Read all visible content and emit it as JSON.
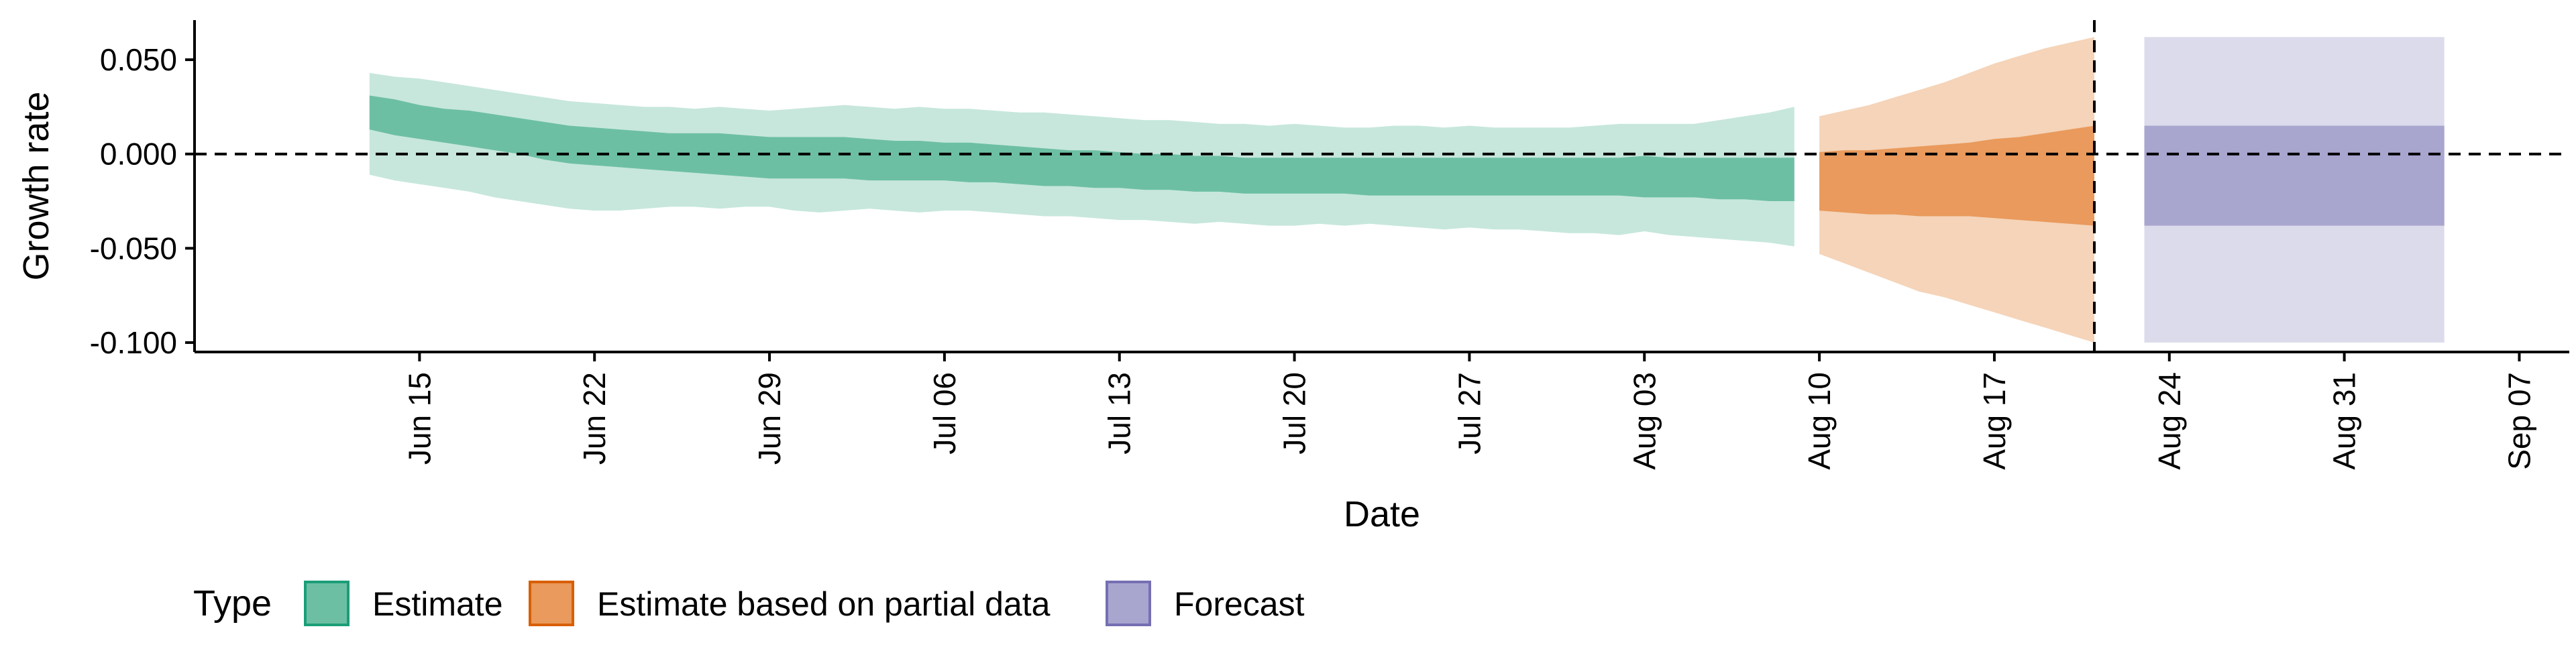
{
  "chart_data": {
    "type": "area",
    "xlabel": "Date",
    "ylabel": "Growth rate",
    "x_range": [
      "2020-06-06",
      "2020-09-09"
    ],
    "ylim": [
      -0.105,
      0.071
    ],
    "y_ticks": [
      0.05,
      0.0,
      -0.05,
      -0.1
    ],
    "y_tick_labels": [
      "0.050",
      "0.000",
      "-0.050",
      "-0.100"
    ],
    "x_ticks": [
      "2020-06-15",
      "2020-06-22",
      "2020-06-29",
      "2020-07-06",
      "2020-07-13",
      "2020-07-20",
      "2020-07-27",
      "2020-08-03",
      "2020-08-10",
      "2020-08-17",
      "2020-08-24",
      "2020-08-31",
      "2020-09-07"
    ],
    "x_tick_labels": [
      "Jun 15",
      "Jun 22",
      "Jun 29",
      "Jul 06",
      "Jul 13",
      "Jul 20",
      "Jul 27",
      "Aug 03",
      "Aug 10",
      "Aug 17",
      "Aug 24",
      "Aug 31",
      "Sep 07"
    ],
    "grid": false,
    "reference_lines": {
      "horizontal_y": 0.0,
      "vertical_x": "2020-08-21"
    },
    "legend": {
      "position": "bottom-left",
      "title": "Type",
      "entries": [
        {
          "label": "Estimate",
          "fill": "#6dbfa4",
          "border": "#1b9e77"
        },
        {
          "label": "Estimate based on partial data",
          "fill": "#e99a5c",
          "border": "#d95f02"
        },
        {
          "label": "Forecast",
          "fill": "#a8a5cf",
          "border": "#7570b3"
        }
      ]
    },
    "series": [
      {
        "name": "Estimate",
        "colors": {
          "outer": "#c7e7dc",
          "inner": "#6dbfa4"
        },
        "x": [
          "2020-06-13",
          "2020-06-14",
          "2020-06-15",
          "2020-06-16",
          "2020-06-17",
          "2020-06-18",
          "2020-06-19",
          "2020-06-20",
          "2020-06-21",
          "2020-06-22",
          "2020-06-23",
          "2020-06-24",
          "2020-06-25",
          "2020-06-26",
          "2020-06-27",
          "2020-06-28",
          "2020-06-29",
          "2020-06-30",
          "2020-07-01",
          "2020-07-02",
          "2020-07-03",
          "2020-07-04",
          "2020-07-05",
          "2020-07-06",
          "2020-07-07",
          "2020-07-08",
          "2020-07-09",
          "2020-07-10",
          "2020-07-11",
          "2020-07-12",
          "2020-07-13",
          "2020-07-14",
          "2020-07-15",
          "2020-07-16",
          "2020-07-17",
          "2020-07-18",
          "2020-07-19",
          "2020-07-20",
          "2020-07-21",
          "2020-07-22",
          "2020-07-23",
          "2020-07-24",
          "2020-07-25",
          "2020-07-26",
          "2020-07-27",
          "2020-07-28",
          "2020-07-29",
          "2020-07-30",
          "2020-07-31",
          "2020-08-01",
          "2020-08-02",
          "2020-08-03",
          "2020-08-04",
          "2020-08-05",
          "2020-08-06",
          "2020-08-07",
          "2020-08-08",
          "2020-08-09"
        ],
        "outer_upper": [
          0.043,
          0.041,
          0.04,
          0.038,
          0.036,
          0.034,
          0.032,
          0.03,
          0.028,
          0.027,
          0.026,
          0.025,
          0.025,
          0.024,
          0.025,
          0.024,
          0.023,
          0.024,
          0.025,
          0.026,
          0.025,
          0.024,
          0.025,
          0.024,
          0.024,
          0.023,
          0.022,
          0.022,
          0.021,
          0.02,
          0.019,
          0.018,
          0.018,
          0.017,
          0.016,
          0.016,
          0.015,
          0.016,
          0.015,
          0.014,
          0.014,
          0.015,
          0.015,
          0.014,
          0.015,
          0.014,
          0.014,
          0.014,
          0.014,
          0.015,
          0.016,
          0.016,
          0.016,
          0.016,
          0.018,
          0.02,
          0.022,
          0.025
        ],
        "outer_lower": [
          -0.011,
          -0.014,
          -0.016,
          -0.018,
          -0.02,
          -0.023,
          -0.025,
          -0.027,
          -0.029,
          -0.03,
          -0.03,
          -0.029,
          -0.028,
          -0.028,
          -0.029,
          -0.028,
          -0.028,
          -0.03,
          -0.031,
          -0.03,
          -0.029,
          -0.03,
          -0.031,
          -0.03,
          -0.03,
          -0.031,
          -0.032,
          -0.033,
          -0.033,
          -0.034,
          -0.035,
          -0.035,
          -0.036,
          -0.037,
          -0.036,
          -0.037,
          -0.038,
          -0.038,
          -0.037,
          -0.038,
          -0.037,
          -0.038,
          -0.039,
          -0.04,
          -0.039,
          -0.04,
          -0.04,
          -0.041,
          -0.042,
          -0.042,
          -0.043,
          -0.041,
          -0.043,
          -0.044,
          -0.045,
          -0.046,
          -0.047,
          -0.049
        ],
        "inner_upper": [
          0.031,
          0.029,
          0.026,
          0.024,
          0.023,
          0.021,
          0.019,
          0.017,
          0.015,
          0.014,
          0.013,
          0.012,
          0.011,
          0.011,
          0.011,
          0.01,
          0.009,
          0.009,
          0.009,
          0.009,
          0.008,
          0.007,
          0.007,
          0.006,
          0.006,
          0.005,
          0.004,
          0.003,
          0.002,
          0.002,
          0.001,
          0.0,
          0.0,
          -0.001,
          -0.001,
          -0.002,
          -0.002,
          -0.002,
          -0.002,
          -0.002,
          -0.002,
          -0.002,
          -0.002,
          -0.002,
          -0.002,
          -0.002,
          -0.002,
          -0.002,
          -0.002,
          -0.002,
          -0.002,
          -0.001,
          -0.002,
          -0.002,
          -0.002,
          -0.002,
          -0.002,
          -0.002
        ],
        "inner_lower": [
          0.013,
          0.01,
          0.008,
          0.006,
          0.004,
          0.002,
          0.0,
          -0.003,
          -0.005,
          -0.006,
          -0.007,
          -0.008,
          -0.009,
          -0.01,
          -0.011,
          -0.012,
          -0.013,
          -0.013,
          -0.013,
          -0.013,
          -0.014,
          -0.014,
          -0.014,
          -0.014,
          -0.015,
          -0.015,
          -0.016,
          -0.017,
          -0.017,
          -0.018,
          -0.018,
          -0.019,
          -0.019,
          -0.02,
          -0.02,
          -0.021,
          -0.021,
          -0.021,
          -0.021,
          -0.021,
          -0.022,
          -0.022,
          -0.022,
          -0.022,
          -0.022,
          -0.022,
          -0.022,
          -0.022,
          -0.022,
          -0.022,
          -0.022,
          -0.023,
          -0.023,
          -0.023,
          -0.024,
          -0.024,
          -0.025,
          -0.025
        ]
      },
      {
        "name": "Estimate based on partial data",
        "colors": {
          "outer": "#f5d4b9",
          "inner": "#e99a5c"
        },
        "x": [
          "2020-08-10",
          "2020-08-11",
          "2020-08-12",
          "2020-08-13",
          "2020-08-14",
          "2020-08-15",
          "2020-08-16",
          "2020-08-17",
          "2020-08-18",
          "2020-08-19",
          "2020-08-20",
          "2020-08-21"
        ],
        "outer_upper": [
          0.02,
          0.023,
          0.026,
          0.03,
          0.034,
          0.038,
          0.043,
          0.048,
          0.052,
          0.056,
          0.059,
          0.062
        ],
        "outer_lower": [
          -0.053,
          -0.058,
          -0.063,
          -0.068,
          -0.073,
          -0.076,
          -0.08,
          -0.084,
          -0.088,
          -0.092,
          -0.096,
          -0.1
        ],
        "inner_upper": [
          0.001,
          0.002,
          0.002,
          0.003,
          0.004,
          0.005,
          0.006,
          0.008,
          0.009,
          0.011,
          0.013,
          0.015
        ],
        "inner_lower": [
          -0.03,
          -0.031,
          -0.032,
          -0.032,
          -0.033,
          -0.033,
          -0.033,
          -0.034,
          -0.035,
          -0.036,
          -0.037,
          -0.038
        ]
      },
      {
        "name": "Forecast",
        "colors": {
          "outer": "#dcdbec",
          "inner": "#a8a5cf"
        },
        "x": [
          "2020-08-23",
          "2020-09-04"
        ],
        "outer_upper": [
          0.062,
          0.062
        ],
        "outer_lower": [
          -0.1,
          -0.1
        ],
        "inner_upper": [
          0.015,
          0.015
        ],
        "inner_lower": [
          -0.038,
          -0.038
        ]
      }
    ]
  }
}
